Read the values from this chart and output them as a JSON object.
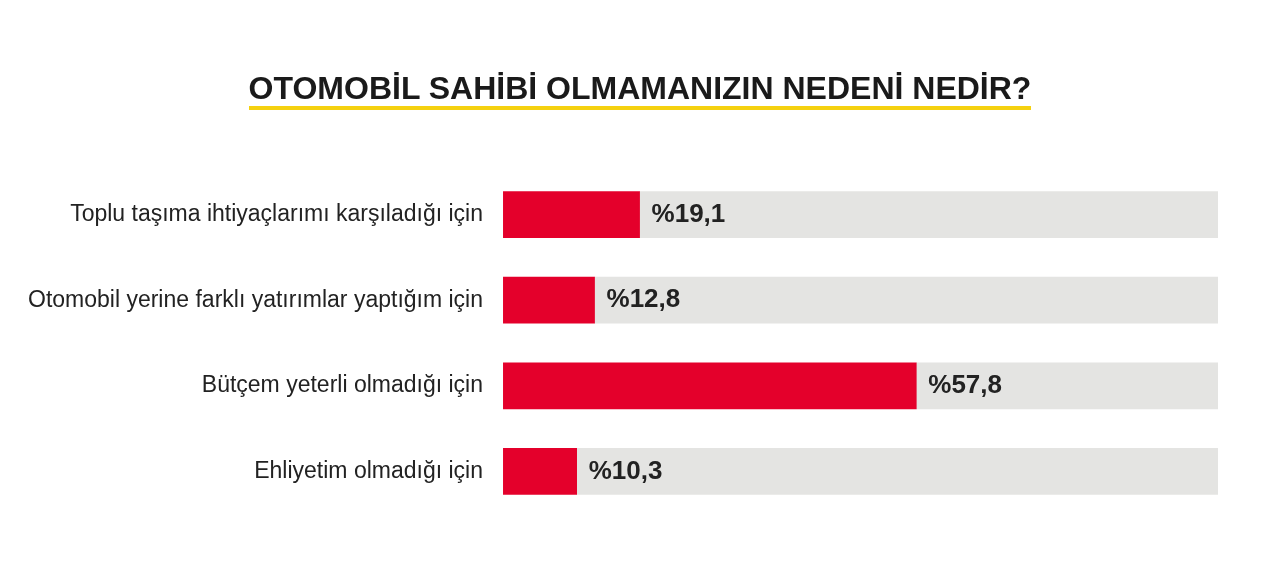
{
  "chart_data": {
    "type": "bar",
    "orientation": "horizontal",
    "title": "OTOMOBİL SAHİBİ OLMAMANIZIN NEDENİ NEDİR?",
    "categories": [
      "Toplu taşıma ihtiyaçlarımı karşıladığı için",
      "Otomobil yerine farklı yatırımlar yaptığım için",
      "Bütçem yeterli olmadığı için",
      "Ehliyetim olmadığı için"
    ],
    "series": [
      {
        "color": "#e4002b",
        "values": [
          19.1,
          12.8,
          57.8,
          10.3
        ],
        "value_labels": [
          "%19,1",
          "%12,8",
          "%57,8",
          "%10,3"
        ]
      },
      {
        "color": "#e4e4e2",
        "values": [
          80.9,
          87.2,
          42.2,
          89.7
        ]
      }
    ],
    "stacked": true,
    "xlim": [
      0,
      100
    ],
    "tick_labels": "y",
    "grid": false,
    "legend": false
  }
}
